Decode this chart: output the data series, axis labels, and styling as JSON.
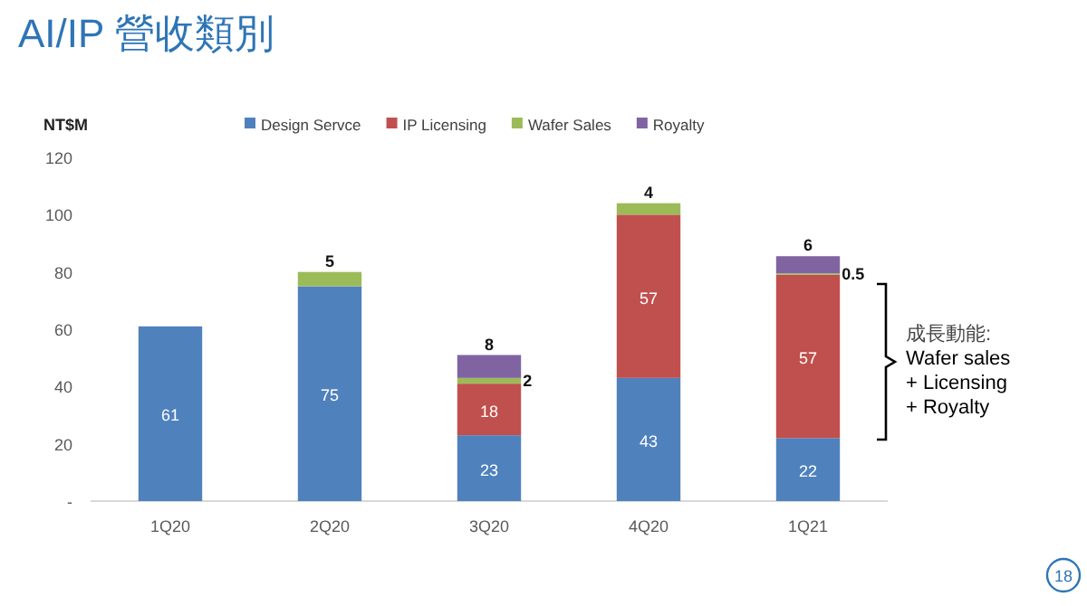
{
  "chart_data": {
    "type": "bar",
    "title": "AI/IP 營收類別",
    "ylabel": "NT$M",
    "stacked": true,
    "legend": "top",
    "grid": false,
    "categories": [
      "1Q20",
      "2Q20",
      "3Q20",
      "4Q20",
      "1Q21"
    ],
    "series": [
      {
        "name": "Design Servce",
        "color": "#4f81bd",
        "values": [
          61,
          75,
          23,
          43,
          22
        ],
        "value_labels": [
          "61",
          "75",
          "23",
          "43",
          "22"
        ]
      },
      {
        "name": "IP Licensing",
        "color": "#c0504d",
        "values": [
          null,
          null,
          18,
          57,
          57
        ],
        "value_labels": [
          null,
          null,
          "18",
          "57",
          "57"
        ]
      },
      {
        "name": "Wafer Sales",
        "color": "#9bbb59",
        "values": [
          null,
          5,
          2,
          4,
          0.5
        ],
        "value_labels": [
          null,
          "5",
          "2",
          "4",
          "0.5"
        ]
      },
      {
        "name": "Royalty",
        "color": "#8064a2",
        "values": [
          null,
          null,
          8,
          null,
          6
        ],
        "value_labels": [
          null,
          null,
          "8",
          null,
          "6"
        ]
      }
    ],
    "ylim": [
      0,
      120
    ],
    "yticks": [
      {
        "value": 0,
        "label": "-"
      },
      20,
      40,
      60,
      80,
      100,
      120
    ],
    "annotations": [
      "成長動能:\nWafer sales\n+ Licensing\n+ Royalty",
      "18"
    ]
  }
}
